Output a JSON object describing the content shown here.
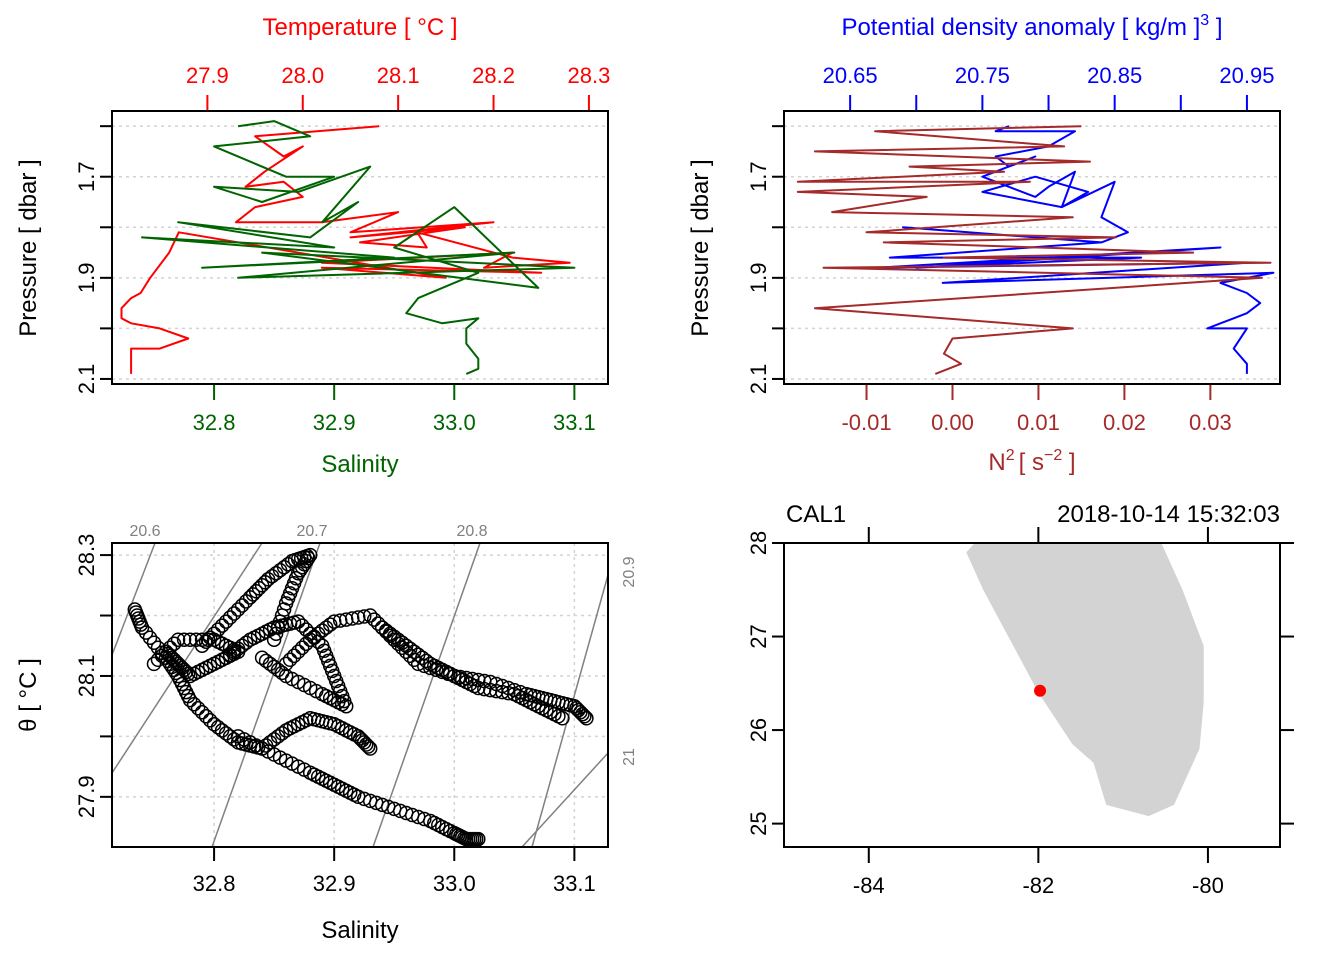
{
  "chart_data": [
    {
      "id": "profile-ts",
      "type": "line",
      "title": "",
      "top_axis": {
        "label": "Temperature [ °C ]",
        "color": "#ff0000",
        "range": [
          27.8,
          28.32
        ],
        "ticks": [
          27.9,
          28.0,
          28.1,
          28.2,
          28.3
        ],
        "tick_labels": [
          "27.9",
          "28.0",
          "28.1",
          "28.2",
          "28.3"
        ]
      },
      "bottom_axis": {
        "label": "Salinity",
        "color": "#006400",
        "range": [
          32.715,
          33.128
        ],
        "ticks": [
          32.8,
          32.9,
          33.0,
          33.1
        ],
        "tick_labels": [
          "32.8",
          "32.9",
          "33.0",
          "33.1"
        ]
      },
      "y_axis": {
        "label": "Pressure [ dbar ]",
        "range": [
          2.11,
          1.57
        ],
        "reversed": true,
        "ticks": [
          1.6,
          1.7,
          1.8,
          1.9,
          2.0,
          2.1
        ],
        "tick_labels": [
          "",
          "1.7",
          "",
          "1.9",
          "",
          "2.1"
        ]
      },
      "grid": true,
      "series": [
        {
          "name": "Temperature",
          "color": "#ff0000",
          "axis": "top",
          "x": [
            28.08,
            27.95,
            27.98,
            28.0,
            27.96,
            27.94,
            27.98,
            28.0,
            27.95,
            27.93,
            28.02,
            28.1,
            28.05,
            28.2,
            28.05,
            28.17,
            28.06,
            28.13,
            28.12,
            28.22,
            28.28,
            28.19,
            28.22,
            28.02,
            28.25,
            28.02,
            28.15,
            27.87,
            27.86,
            27.84,
            27.83,
            27.82,
            27.81,
            27.81,
            27.81,
            27.82,
            27.85,
            27.88,
            27.85,
            27.82,
            27.82,
            27.82
          ],
          "y": [
            1.6,
            1.62,
            1.66,
            1.64,
            1.69,
            1.72,
            1.71,
            1.74,
            1.76,
            1.79,
            1.79,
            1.77,
            1.81,
            1.79,
            1.82,
            1.8,
            1.83,
            1.84,
            1.81,
            1.86,
            1.87,
            1.88,
            1.85,
            1.87,
            1.89,
            1.88,
            1.9,
            1.81,
            1.85,
            1.9,
            1.93,
            1.94,
            1.96,
            1.97,
            1.98,
            1.99,
            2.0,
            2.02,
            2.04,
            2.04,
            2.07,
            2.09
          ]
        },
        {
          "name": "Salinity",
          "color": "#006400",
          "axis": "bottom",
          "x": [
            32.82,
            32.85,
            32.88,
            32.8,
            32.83,
            32.86,
            32.9,
            32.84,
            32.8,
            32.87,
            32.93,
            32.89,
            32.92,
            32.88,
            32.77,
            32.9,
            32.74,
            32.95,
            32.79,
            33.05,
            32.82,
            33.1,
            32.84,
            33.07,
            33.0,
            32.95,
            33.02,
            32.99,
            32.97,
            32.96,
            32.99,
            33.02,
            33.01,
            33.01,
            33.02,
            33.02,
            33.01
          ],
          "y": [
            1.6,
            1.59,
            1.62,
            1.64,
            1.67,
            1.7,
            1.7,
            1.75,
            1.72,
            1.73,
            1.68,
            1.79,
            1.75,
            1.82,
            1.79,
            1.84,
            1.82,
            1.86,
            1.88,
            1.85,
            1.9,
            1.88,
            1.85,
            1.92,
            1.76,
            1.84,
            1.89,
            1.92,
            1.94,
            1.97,
            1.99,
            1.98,
            2.0,
            2.03,
            2.06,
            2.08,
            2.09
          ]
        }
      ]
    },
    {
      "id": "profile-density-n2",
      "type": "line",
      "title": "",
      "top_axis": {
        "label": "Potential density anomaly [ kg/m ]",
        "label_superscript": "3",
        "label_suffix": " ]",
        "color": "#0000ff",
        "range": [
          20.6,
          20.975
        ],
        "ticks": [
          20.65,
          20.7,
          20.75,
          20.8,
          20.85,
          20.9,
          20.95
        ],
        "tick_labels": [
          "20.65",
          "",
          "20.75",
          "",
          "20.85",
          "",
          "20.95"
        ]
      },
      "bottom_axis": {
        "label": "N",
        "label_superscript": "2",
        "label_units": "[ s",
        "label_units_superscript": "−2",
        "label_units_suffix": " ]",
        "color": "#a52a2a",
        "range": [
          -0.0196,
          0.0381
        ],
        "ticks": [
          -0.01,
          0.0,
          0.01,
          0.02,
          0.03
        ],
        "tick_labels": [
          "-0.01",
          "0.00",
          "0.01",
          "0.02",
          "0.03"
        ]
      },
      "y_axis": {
        "label": "Pressure [ dbar ]",
        "range": [
          2.11,
          1.57
        ],
        "reversed": true,
        "ticks": [
          1.6,
          1.7,
          1.8,
          1.9,
          2.0,
          2.1
        ],
        "tick_labels": [
          "",
          "1.7",
          "",
          "1.9",
          "",
          "2.1"
        ]
      },
      "grid": true,
      "series": [
        {
          "name": "Potential density anomaly",
          "color": "#0000ff",
          "axis": "top",
          "x": [
            20.77,
            20.76,
            20.82,
            20.8,
            20.76,
            20.77,
            20.79,
            20.75,
            20.79,
            20.8,
            20.82,
            20.81,
            20.75,
            20.79,
            20.83,
            20.81,
            20.85,
            20.84,
            20.86,
            20.84,
            20.69,
            20.84,
            20.68,
            20.87,
            20.7,
            20.93,
            20.67,
            20.95,
            20.72,
            20.97,
            20.93,
            20.95,
            20.96,
            20.95,
            20.94,
            20.93,
            20.92,
            20.92,
            20.95,
            20.94,
            20.95,
            20.95
          ],
          "y": [
            1.6,
            1.61,
            1.61,
            1.64,
            1.66,
            1.68,
            1.66,
            1.7,
            1.74,
            1.72,
            1.69,
            1.76,
            1.73,
            1.7,
            1.73,
            1.76,
            1.71,
            1.78,
            1.81,
            1.83,
            1.8,
            1.83,
            1.86,
            1.86,
            1.88,
            1.84,
            1.88,
            1.87,
            1.91,
            1.89,
            1.91,
            1.93,
            1.95,
            1.97,
            1.98,
            1.99,
            2.0,
            2.0,
            2.0,
            2.04,
            2.07,
            2.09
          ]
        },
        {
          "name": "N2",
          "color": "#a52a2a",
          "axis": "bottom",
          "x": [
            0.015,
            -0.009,
            0.013,
            -0.016,
            0.016,
            -0.005,
            0.006,
            -0.018,
            0.009,
            -0.018,
            -0.003,
            -0.014,
            0.014,
            -0.01,
            0.019,
            -0.008,
            0.028,
            -0.001,
            0.037,
            -0.015,
            0.036,
            -0.016,
            0.014,
            0.0,
            -0.001,
            0.001,
            -0.002
          ],
          "y": [
            1.6,
            1.61,
            1.64,
            1.65,
            1.67,
            1.68,
            1.69,
            1.71,
            1.71,
            1.73,
            1.74,
            1.77,
            1.78,
            1.81,
            1.82,
            1.83,
            1.85,
            1.86,
            1.87,
            1.88,
            1.9,
            1.96,
            2.0,
            2.02,
            2.05,
            2.07,
            2.09
          ]
        }
      ]
    },
    {
      "id": "ts-diagram",
      "type": "scatter",
      "title": "",
      "xlabel": "Salinity",
      "ylabel": "θ [ °C ]",
      "xlim": [
        32.715,
        33.128
      ],
      "ylim": [
        27.817,
        28.32
      ],
      "x_ticks": [
        32.8,
        32.9,
        33.0,
        33.1
      ],
      "x_tick_labels": [
        "32.8",
        "32.9",
        "33.0",
        "33.1"
      ],
      "y_ticks": [
        27.9,
        28.0,
        28.1,
        28.2,
        28.3
      ],
      "y_tick_labels": [
        "27.9",
        "",
        "28.1",
        "",
        "28.3"
      ],
      "grid": true,
      "isopycnals": [
        {
          "label": "20.6"
        },
        {
          "label": "20.7"
        },
        {
          "label": "20.8"
        },
        {
          "label": "20.9"
        },
        {
          "label": "21"
        }
      ],
      "isopycnal_color": "#808080",
      "marker": "open-circle",
      "point_color": "#000000",
      "point_segments": [
        {
          "s": [
            32.734,
            32.74,
            32.76,
            32.77,
            32.78,
            32.8,
            32.82,
            32.84,
            32.86,
            32.88,
            32.9,
            32.92,
            32.93
          ],
          "t": [
            28.21,
            28.18,
            28.13,
            28.1,
            28.06,
            28.02,
            27.99,
            27.98,
            28.01,
            28.03,
            28.02,
            28.0,
            27.98
          ]
        },
        {
          "s": [
            32.79,
            32.81,
            32.83,
            32.845,
            32.865,
            32.88,
            32.87,
            32.86,
            32.85
          ],
          "t": [
            28.15,
            28.19,
            28.23,
            28.26,
            28.29,
            28.3,
            28.27,
            28.22,
            28.16
          ]
        },
        {
          "s": [
            32.81,
            32.83,
            32.85,
            32.87,
            32.89,
            32.9,
            32.91,
            32.89,
            32.86,
            32.84
          ],
          "t": [
            28.13,
            28.16,
            28.18,
            28.19,
            28.15,
            28.1,
            28.05,
            28.07,
            28.1,
            28.13
          ]
        },
        {
          "s": [
            32.86,
            32.88,
            32.9,
            32.93,
            32.95,
            32.97,
            33.0,
            33.03,
            33.06,
            33.08,
            33.1,
            33.11
          ],
          "t": [
            28.12,
            28.16,
            28.19,
            28.2,
            28.16,
            28.12,
            28.1,
            28.09,
            28.07,
            28.06,
            28.05,
            28.03
          ]
        },
        {
          "s": [
            32.94,
            32.96,
            32.98,
            33.0,
            33.02,
            33.05,
            33.07,
            33.09
          ],
          "t": [
            28.18,
            28.15,
            28.12,
            28.1,
            28.08,
            28.07,
            28.05,
            28.03
          ]
        },
        {
          "s": [
            32.82,
            32.85,
            32.88,
            32.9,
            32.92,
            32.95,
            32.98,
            33.0,
            33.01,
            33.02
          ],
          "t": [
            28.0,
            27.97,
            27.94,
            27.92,
            27.9,
            27.88,
            27.86,
            27.84,
            27.83,
            27.83
          ]
        },
        {
          "s": [
            32.76,
            32.77,
            32.78,
            32.8,
            32.82,
            32.8,
            32.77,
            32.75
          ],
          "t": [
            28.14,
            28.12,
            28.1,
            28.12,
            28.14,
            28.16,
            28.16,
            28.12
          ]
        }
      ]
    },
    {
      "id": "station-map",
      "type": "map",
      "title_left": "CAL1",
      "title_right": "2018-10-14 15:32:03",
      "xlim": [
        -85.0,
        -79.15
      ],
      "ylim": [
        24.75,
        28.0
      ],
      "x_ticks": [
        -84,
        -82,
        -80
      ],
      "x_tick_labels": [
        "-84",
        "-82",
        "-80"
      ],
      "y_ticks": [
        25,
        26,
        27,
        28
      ],
      "y_tick_labels": [
        "25",
        "26",
        "27",
        "28"
      ],
      "land_color": "#d3d3d3",
      "land_polygon": {
        "lon": [
          -82.75,
          -82.85,
          -82.65,
          -82.0,
          -81.6,
          -81.35,
          -81.2,
          -80.7,
          -80.4,
          -80.1,
          -80.05,
          -80.05,
          -80.3,
          -80.55,
          -82.75
        ],
        "lat": [
          28.0,
          27.9,
          27.5,
          26.4,
          25.85,
          25.65,
          25.2,
          25.08,
          25.2,
          25.8,
          26.3,
          26.9,
          27.5,
          28.0,
          28.0
        ]
      },
      "station": {
        "name": "CAL1",
        "lon": -81.98,
        "lat": 26.42,
        "color": "#ff0000"
      }
    }
  ]
}
